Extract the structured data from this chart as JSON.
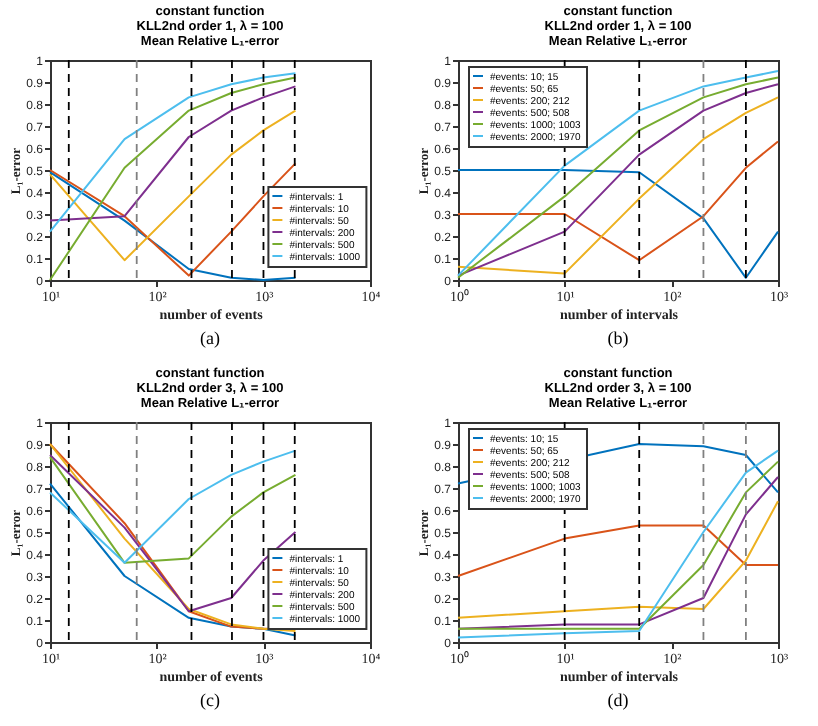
{
  "chart_data": [
    {
      "type": "line",
      "title": "constant function\nKLL2nd order 1, λ = 100\nMean Relative L₁-error",
      "xlabel": "number of events",
      "ylabel": "L₁-error",
      "log": "x",
      "legend": "bottom right",
      "x": [
        10,
        50,
        200,
        500,
        1000,
        2000
      ],
      "xlim": [
        10,
        10000
      ],
      "xticks": [
        {
          "value": 10,
          "label": "10¹"
        },
        {
          "value": 100,
          "label": "10²"
        },
        {
          "value": 1000,
          "label": "10³"
        },
        {
          "value": 10000,
          "label": "10⁴"
        }
      ],
      "ylim": [
        0,
        1
      ],
      "yticks": [
        0,
        0.1,
        0.2,
        0.3,
        0.4,
        0.5,
        0.6,
        0.7,
        0.8,
        0.9,
        1
      ],
      "series": [
        {
          "name": "#intervals: 1",
          "color": "#0072bd",
          "values": [
            0.49,
            0.27,
            0.05,
            0.01,
            0.0,
            0.01
          ]
        },
        {
          "name": "#intervals: 10",
          "color": "#d95319",
          "values": [
            0.5,
            0.29,
            0.02,
            0.22,
            0.38,
            0.53
          ]
        },
        {
          "name": "#intervals: 50",
          "color": "#edb120",
          "values": [
            0.48,
            0.09,
            0.38,
            0.57,
            0.68,
            0.77
          ]
        },
        {
          "name": "#intervals: 200",
          "color": "#7e2f8e",
          "values": [
            0.27,
            0.29,
            0.65,
            0.77,
            0.83,
            0.88
          ]
        },
        {
          "name": "#intervals: 500",
          "color": "#77ac30",
          "values": [
            0.0,
            0.51,
            0.77,
            0.85,
            0.89,
            0.92
          ]
        },
        {
          "name": "#intervals: 1000",
          "color": "#4dbeee",
          "values": [
            0.22,
            0.64,
            0.83,
            0.89,
            0.92,
            0.94
          ]
        }
      ],
      "ref_lines": [
        {
          "axis": "x",
          "value": 15,
          "color": "#000000"
        },
        {
          "axis": "x",
          "value": 65,
          "color": "#808080"
        },
        {
          "axis": "x",
          "value": 212,
          "color": "#000000"
        },
        {
          "axis": "x",
          "value": 508,
          "color": "#000000"
        },
        {
          "axis": "x",
          "value": 1003,
          "color": "#000000"
        },
        {
          "axis": "x",
          "value": 1970,
          "color": "#000000"
        }
      ],
      "annotations": [
        "(a)"
      ]
    },
    {
      "type": "line",
      "title": "constant function\nKLL2nd order 1, λ = 100\nMean Relative L₁-error",
      "xlabel": "number of intervals",
      "ylabel": "L₁-error",
      "log": "x",
      "legend": "top left",
      "x": [
        1,
        10,
        50,
        200,
        500,
        1000
      ],
      "xlim": [
        1,
        1000
      ],
      "xticks": [
        {
          "value": 1,
          "label": "10⁰"
        },
        {
          "value": 10,
          "label": "10¹"
        },
        {
          "value": 100,
          "label": "10²"
        },
        {
          "value": 1000,
          "label": "10³"
        }
      ],
      "ylim": [
        0,
        1
      ],
      "yticks": [
        0,
        0.1,
        0.2,
        0.3,
        0.4,
        0.5,
        0.6,
        0.7,
        0.8,
        0.9,
        1
      ],
      "series": [
        {
          "name": "#events: 10; 15",
          "color": "#0072bd",
          "values": [
            0.5,
            0.5,
            0.49,
            0.28,
            0.01,
            0.22
          ]
        },
        {
          "name": "#events: 50; 65",
          "color": "#d95319",
          "values": [
            0.3,
            0.3,
            0.09,
            0.29,
            0.51,
            0.63
          ]
        },
        {
          "name": "#events: 200; 212",
          "color": "#edb120",
          "values": [
            0.06,
            0.03,
            0.37,
            0.64,
            0.76,
            0.83
          ]
        },
        {
          "name": "#events: 500; 508",
          "color": "#7e2f8e",
          "values": [
            0.02,
            0.22,
            0.57,
            0.77,
            0.85,
            0.89
          ]
        },
        {
          "name": "#events: 1000; 1003",
          "color": "#77ac30",
          "values": [
            0.01,
            0.38,
            0.68,
            0.83,
            0.89,
            0.92
          ]
        },
        {
          "name": "#events: 2000; 1970",
          "color": "#4dbeee",
          "values": [
            0.02,
            0.52,
            0.77,
            0.88,
            0.92,
            0.95
          ]
        }
      ],
      "ref_lines": [
        {
          "axis": "x",
          "value": 10,
          "color": "#000000"
        },
        {
          "axis": "x",
          "value": 50,
          "color": "#000000"
        },
        {
          "axis": "x",
          "value": 200,
          "color": "#808080"
        },
        {
          "axis": "x",
          "value": 500,
          "color": "#000000"
        }
      ],
      "annotations": [
        "(b)"
      ]
    },
    {
      "type": "line",
      "title": "constant function\nKLL2nd order 3, λ = 100\nMean Relative L₁-error",
      "xlabel": "number of events",
      "ylabel": "L₁-error",
      "log": "x",
      "legend": "bottom right",
      "x": [
        10,
        50,
        200,
        500,
        1000,
        2000
      ],
      "xlim": [
        10,
        10000
      ],
      "xticks": [
        {
          "value": 10,
          "label": "10¹"
        },
        {
          "value": 100,
          "label": "10²"
        },
        {
          "value": 1000,
          "label": "10³"
        },
        {
          "value": 10000,
          "label": "10⁴"
        }
      ],
      "ylim": [
        0,
        1
      ],
      "yticks": [
        0,
        0.1,
        0.2,
        0.3,
        0.4,
        0.5,
        0.6,
        0.7,
        0.8,
        0.9,
        1
      ],
      "series": [
        {
          "name": "#intervals: 1",
          "color": "#0072bd",
          "values": [
            0.72,
            0.3,
            0.11,
            0.07,
            0.06,
            0.03
          ]
        },
        {
          "name": "#intervals: 10",
          "color": "#d95319",
          "values": [
            0.9,
            0.54,
            0.14,
            0.07,
            0.06,
            0.06
          ]
        },
        {
          "name": "#intervals: 50",
          "color": "#edb120",
          "values": [
            0.9,
            0.47,
            0.15,
            0.08,
            0.06,
            0.05
          ]
        },
        {
          "name": "#intervals: 200",
          "color": "#7e2f8e",
          "values": [
            0.85,
            0.52,
            0.14,
            0.2,
            0.37,
            0.5
          ]
        },
        {
          "name": "#intervals: 500",
          "color": "#77ac30",
          "values": [
            0.84,
            0.36,
            0.38,
            0.57,
            0.68,
            0.76
          ]
        },
        {
          "name": "#intervals: 1000",
          "color": "#4dbeee",
          "values": [
            0.68,
            0.36,
            0.65,
            0.76,
            0.82,
            0.87
          ]
        }
      ],
      "ref_lines": [
        {
          "axis": "x",
          "value": 15,
          "color": "#000000"
        },
        {
          "axis": "x",
          "value": 65,
          "color": "#808080"
        },
        {
          "axis": "x",
          "value": 212,
          "color": "#000000"
        },
        {
          "axis": "x",
          "value": 508,
          "color": "#000000"
        },
        {
          "axis": "x",
          "value": 1003,
          "color": "#000000"
        },
        {
          "axis": "x",
          "value": 1970,
          "color": "#000000"
        }
      ],
      "annotations": [
        "(c)"
      ]
    },
    {
      "type": "line",
      "title": "constant function\nKLL2nd order 3, λ = 100\nMean Relative L₁-error",
      "xlabel": "number of intervals",
      "ylabel": "L₁-error",
      "log": "x",
      "legend": "top left",
      "x": [
        1,
        10,
        50,
        200,
        500,
        1000
      ],
      "xlim": [
        1,
        1000
      ],
      "xticks": [
        {
          "value": 1,
          "label": "10⁰"
        },
        {
          "value": 10,
          "label": "10¹"
        },
        {
          "value": 100,
          "label": "10²"
        },
        {
          "value": 1000,
          "label": "10³"
        }
      ],
      "ylim": [
        0,
        1
      ],
      "yticks": [
        0,
        0.1,
        0.2,
        0.3,
        0.4,
        0.5,
        0.6,
        0.7,
        0.8,
        0.9,
        1
      ],
      "series": [
        {
          "name": "#events: 10; 15",
          "color": "#0072bd",
          "values": [
            0.72,
            null,
            0.9,
            0.89,
            0.85,
            0.68
          ]
        },
        {
          "name": "#events: 50; 65",
          "color": "#d95319",
          "values": [
            0.3,
            0.47,
            0.53,
            0.53,
            0.35,
            0.35
          ]
        },
        {
          "name": "#events: 200; 212",
          "color": "#edb120",
          "values": [
            0.11,
            0.14,
            0.16,
            0.15,
            0.37,
            0.64
          ]
        },
        {
          "name": "#events: 500; 508",
          "color": "#7e2f8e",
          "values": [
            0.06,
            0.08,
            0.08,
            0.2,
            0.58,
            0.75
          ]
        },
        {
          "name": "#events: 1000; 1003",
          "color": "#77ac30",
          "values": [
            0.06,
            0.06,
            0.06,
            0.35,
            0.68,
            0.82
          ]
        },
        {
          "name": "#events: 2000; 1970",
          "color": "#4dbeee",
          "values": [
            0.02,
            0.04,
            0.05,
            0.5,
            0.77,
            0.87
          ]
        }
      ],
      "ref_lines": [
        {
          "axis": "x",
          "value": 10,
          "color": "#000000"
        },
        {
          "axis": "x",
          "value": 50,
          "color": "#000000"
        },
        {
          "axis": "x",
          "value": 200,
          "color": "#808080"
        },
        {
          "axis": "x",
          "value": 500,
          "color": "#808080"
        }
      ],
      "annotations": [
        "(d)"
      ]
    }
  ]
}
